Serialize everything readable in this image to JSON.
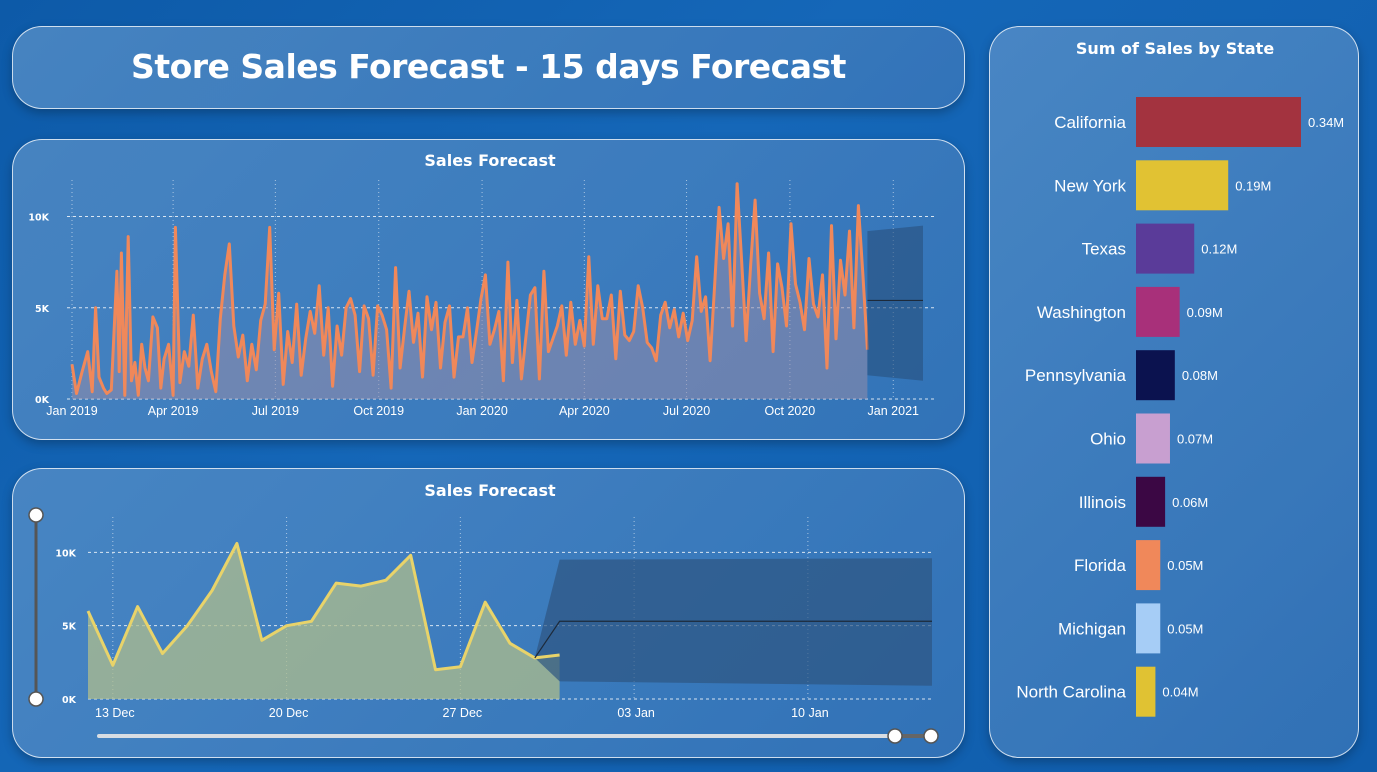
{
  "header": {
    "title": "Store Sales Forecast - 15 days Forecast"
  },
  "chart_data": [
    {
      "type": "line",
      "title": "Sales Forecast",
      "xlabel": "",
      "ylabel": "",
      "x_ticks": [
        "Jan 2019",
        "Apr 2019",
        "Jul 2019",
        "Oct 2019",
        "Jan 2020",
        "Apr 2020",
        "Jul 2020",
        "Oct 2020",
        "Jan 2021"
      ],
      "y_ticks": [
        "0K",
        "5K",
        "10K"
      ],
      "ylim": [
        0,
        12000
      ],
      "x_range": [
        "2019-01-01",
        "2021-01-15"
      ],
      "series_color": "#f0885a",
      "series": [
        {
          "points": [
            [
              0,
              1900
            ],
            [
              4,
              300
            ],
            [
              9,
              1500
            ],
            [
              14,
              2600
            ],
            [
              18,
              400
            ],
            [
              21,
              5000
            ],
            [
              24,
              1200
            ],
            [
              28,
              600
            ],
            [
              31,
              300
            ],
            [
              35,
              500
            ],
            [
              40,
              7000
            ],
            [
              42,
              1500
            ],
            [
              44,
              8000
            ],
            [
              47,
              200
            ],
            [
              50,
              8900
            ],
            [
              53,
              1000
            ],
            [
              56,
              2000
            ],
            [
              59,
              200
            ],
            [
              62,
              3000
            ],
            [
              65,
              1700
            ],
            [
              68,
              1000
            ],
            [
              72,
              4500
            ],
            [
              76,
              3900
            ],
            [
              79,
              600
            ],
            [
              82,
              2200
            ],
            [
              86,
              3000
            ],
            [
              90,
              200
            ],
            [
              92,
              9400
            ],
            [
              96,
              900
            ],
            [
              100,
              2600
            ],
            [
              104,
              1800
            ],
            [
              108,
              4600
            ],
            [
              112,
              600
            ],
            [
              116,
              2200
            ],
            [
              120,
              3000
            ],
            [
              124,
              1500
            ],
            [
              128,
              400
            ],
            [
              132,
              4400
            ],
            [
              136,
              6800
            ],
            [
              140,
              8500
            ],
            [
              144,
              4000
            ],
            [
              148,
              2300
            ],
            [
              152,
              3500
            ],
            [
              156,
              1000
            ],
            [
              160,
              3000
            ],
            [
              164,
              1600
            ],
            [
              168,
              4300
            ],
            [
              172,
              5200
            ],
            [
              176,
              9400
            ],
            [
              180,
              2700
            ],
            [
              184,
              5800
            ],
            [
              188,
              800
            ],
            [
              192,
              3700
            ],
            [
              196,
              2000
            ],
            [
              200,
              5200
            ],
            [
              204,
              1300
            ],
            [
              208,
              3300
            ],
            [
              212,
              4800
            ],
            [
              216,
              3600
            ],
            [
              220,
              6200
            ],
            [
              224,
              2400
            ],
            [
              228,
              5000
            ],
            [
              232,
              700
            ],
            [
              236,
              4000
            ],
            [
              240,
              2400
            ],
            [
              244,
              5000
            ],
            [
              248,
              5500
            ],
            [
              252,
              4600
            ],
            [
              256,
              1500
            ],
            [
              260,
              5100
            ],
            [
              264,
              4400
            ],
            [
              268,
              1300
            ],
            [
              272,
              5100
            ],
            [
              276,
              4600
            ],
            [
              280,
              3800
            ],
            [
              284,
              600
            ],
            [
              288,
              7200
            ],
            [
              292,
              1700
            ],
            [
              296,
              3900
            ],
            [
              300,
              5900
            ],
            [
              304,
              3100
            ],
            [
              308,
              4700
            ],
            [
              312,
              1200
            ],
            [
              316,
              5600
            ],
            [
              320,
              3800
            ],
            [
              324,
              5300
            ],
            [
              328,
              1700
            ],
            [
              332,
              4200
            ],
            [
              336,
              5100
            ],
            [
              340,
              1200
            ],
            [
              344,
              3400
            ],
            [
              348,
              3400
            ],
            [
              352,
              5000
            ],
            [
              356,
              2000
            ],
            [
              360,
              3700
            ],
            [
              364,
              5500
            ],
            [
              368,
              6800
            ],
            [
              372,
              3000
            ],
            [
              376,
              3800
            ],
            [
              380,
              4800
            ],
            [
              384,
              1000
            ],
            [
              388,
              7500
            ],
            [
              392,
              2000
            ],
            [
              396,
              5400
            ],
            [
              400,
              1100
            ],
            [
              404,
              3400
            ],
            [
              408,
              5700
            ],
            [
              412,
              6100
            ],
            [
              416,
              1100
            ],
            [
              420,
              7000
            ],
            [
              424,
              2600
            ],
            [
              428,
              3300
            ],
            [
              432,
              4000
            ],
            [
              436,
              5100
            ],
            [
              440,
              2400
            ],
            [
              444,
              5300
            ],
            [
              448,
              3000
            ],
            [
              452,
              4300
            ],
            [
              456,
              2900
            ],
            [
              460,
              7800
            ],
            [
              464,
              3000
            ],
            [
              468,
              6200
            ],
            [
              472,
              4400
            ],
            [
              476,
              4400
            ],
            [
              480,
              5700
            ],
            [
              484,
              2200
            ],
            [
              488,
              5900
            ],
            [
              492,
              3500
            ],
            [
              496,
              3200
            ],
            [
              500,
              3700
            ],
            [
              504,
              6200
            ],
            [
              508,
              5000
            ],
            [
              512,
              3100
            ],
            [
              516,
              2800
            ],
            [
              520,
              2100
            ],
            [
              524,
              4600
            ],
            [
              528,
              5300
            ],
            [
              532,
              3900
            ],
            [
              536,
              4900
            ],
            [
              540,
              3400
            ],
            [
              544,
              4700
            ],
            [
              548,
              3200
            ],
            [
              552,
              4300
            ],
            [
              556,
              7800
            ],
            [
              560,
              4800
            ],
            [
              564,
              5600
            ],
            [
              568,
              2100
            ],
            [
              572,
              6200
            ],
            [
              576,
              10500
            ],
            [
              580,
              7700
            ],
            [
              584,
              9600
            ],
            [
              588,
              4000
            ],
            [
              592,
              11800
            ],
            [
              596,
              7600
            ],
            [
              600,
              3200
            ],
            [
              604,
              7300
            ],
            [
              608,
              10900
            ],
            [
              612,
              5800
            ],
            [
              616,
              4400
            ],
            [
              620,
              8000
            ],
            [
              624,
              2600
            ],
            [
              628,
              7400
            ],
            [
              632,
              6100
            ],
            [
              636,
              4000
            ],
            [
              640,
              9600
            ],
            [
              644,
              6300
            ],
            [
              648,
              5300
            ],
            [
              652,
              3800
            ],
            [
              656,
              7700
            ],
            [
              660,
              5200
            ],
            [
              664,
              4500
            ],
            [
              668,
              6800
            ],
            [
              672,
              1700
            ],
            [
              676,
              9500
            ],
            [
              680,
              3300
            ],
            [
              684,
              7600
            ],
            [
              688,
              5700
            ],
            [
              692,
              9200
            ],
            [
              696,
              3900
            ],
            [
              700,
              10600
            ],
            [
              704,
              6800
            ],
            [
              708,
              2700
            ]
          ]
        }
      ],
      "forecast": {
        "value": 5400,
        "lower": 1000,
        "upper": 9500
      }
    },
    {
      "type": "area",
      "title": "Sales Forecast",
      "xlabel": "",
      "ylabel": "",
      "x_ticks": [
        "13 Dec",
        "20 Dec",
        "27 Dec",
        "03 Jan",
        "10 Jan"
      ],
      "y_ticks": [
        "0K",
        "5K",
        "10K"
      ],
      "ylim": [
        0,
        12000
      ],
      "x_range": [
        "2020-12-12",
        "2021-01-15"
      ],
      "series_color": "#e8d36a",
      "series": [
        {
          "x": [
            "2020-12-12",
            "2020-12-13",
            "2020-12-14",
            "2020-12-15",
            "2020-12-16",
            "2020-12-17",
            "2020-12-18",
            "2020-12-19",
            "2020-12-20",
            "2020-12-21",
            "2020-12-22",
            "2020-12-23",
            "2020-12-24",
            "2020-12-25",
            "2020-12-26",
            "2020-12-27",
            "2020-12-28",
            "2020-12-29",
            "2020-12-30",
            "2020-12-31"
          ],
          "values": [
            6000,
            2300,
            6300,
            3100,
            5000,
            7400,
            10600,
            4000,
            5000,
            5300,
            7900,
            7700,
            8100,
            9800,
            2000,
            2200,
            6600,
            3800,
            2800,
            3000
          ]
        }
      ],
      "forecast": {
        "x": [
          "2020-12-30",
          "2020-12-31",
          "2021-01-15"
        ],
        "values": [
          2800,
          5300,
          5300
        ],
        "lower": [
          2800,
          1200,
          900
        ],
        "upper": [
          2800,
          9500,
          9600
        ]
      }
    },
    {
      "type": "bar",
      "orientation": "horizontal",
      "title": "Sum of Sales by State",
      "categories": [
        "California",
        "New York",
        "Texas",
        "Washington",
        "Pennsylvania",
        "Ohio",
        "Illinois",
        "Florida",
        "Michigan",
        "North Carolina"
      ],
      "values": [
        0.34,
        0.19,
        0.12,
        0.09,
        0.08,
        0.07,
        0.06,
        0.05,
        0.05,
        0.04
      ],
      "labels": [
        "0.34M",
        "0.19M",
        "0.12M",
        "0.09M",
        "0.08M",
        "0.07M",
        "0.06M",
        "0.05M",
        "0.05M",
        "0.04M"
      ],
      "colors": [
        "#a3333f",
        "#e1c233",
        "#5a3b99",
        "#a8307a",
        "#0b124f",
        "#c89fd0",
        "#3b0744",
        "#f0885a",
        "#a6cdf6",
        "#e0c233"
      ],
      "unit": "M"
    }
  ]
}
